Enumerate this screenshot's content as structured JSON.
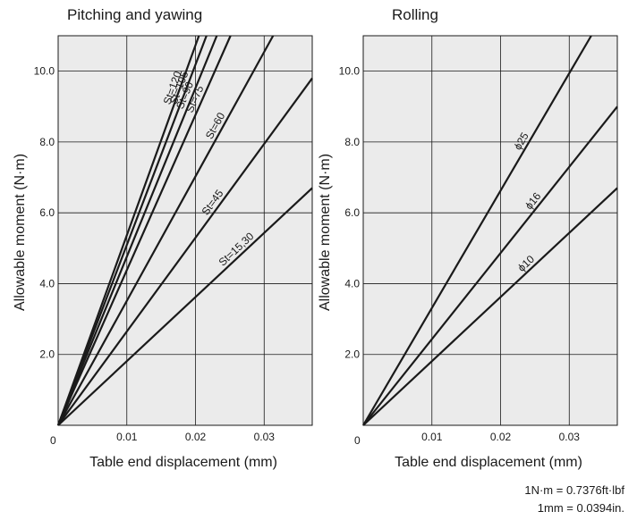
{
  "chart_data": [
    {
      "type": "line",
      "title": "Pitching and yawing",
      "xlabel": "Table end displacement (mm)",
      "ylabel": "Allowable moment (N·m)",
      "xlim": [
        0,
        0.037
      ],
      "ylim": [
        0,
        11
      ],
      "x_ticks": [
        "0.01",
        "0.02",
        "0.03"
      ],
      "y_ticks": [
        "2.0",
        "4.0",
        "6.0",
        "8.0",
        "10.0"
      ],
      "origin_label": "0",
      "grid": true,
      "series": [
        {
          "name": "St=120",
          "x": [
            0,
            0.0205
          ],
          "y": [
            0,
            11
          ]
        },
        {
          "name": "St=105",
          "x": [
            0,
            0.0216
          ],
          "y": [
            0,
            11
          ]
        },
        {
          "name": "St=90",
          "x": [
            0,
            0.0231
          ],
          "y": [
            0,
            11
          ]
        },
        {
          "name": "St=75",
          "x": [
            0,
            0.0251
          ],
          "y": [
            0,
            11
          ]
        },
        {
          "name": "St=60",
          "x": [
            0,
            0.0313
          ],
          "y": [
            0,
            11
          ]
        },
        {
          "name": "St=45",
          "x": [
            0,
            0.037
          ],
          "y": [
            0,
            9.8
          ]
        },
        {
          "name": "St=15,30",
          "x": [
            0,
            0.037
          ],
          "y": [
            0,
            6.7
          ]
        }
      ]
    },
    {
      "type": "line",
      "title": "Rolling",
      "xlabel": "Table end displacement (mm)",
      "ylabel": "Allowable moment (N·m)",
      "xlim": [
        0,
        0.037
      ],
      "ylim": [
        0,
        11
      ],
      "x_ticks": [
        "0.01",
        "0.02",
        "0.03"
      ],
      "y_ticks": [
        "2.0",
        "4.0",
        "6.0",
        "8.0",
        "10.0"
      ],
      "origin_label": "0",
      "grid": true,
      "series": [
        {
          "name": "ϕ25",
          "x": [
            0,
            0.0332
          ],
          "y": [
            0,
            11
          ]
        },
        {
          "name": "ϕ16",
          "x": [
            0,
            0.037
          ],
          "y": [
            0,
            9.0
          ]
        },
        {
          "name": "ϕ10",
          "x": [
            0,
            0.037
          ],
          "y": [
            0,
            6.7
          ]
        }
      ]
    }
  ],
  "notes": {
    "line1": "1N·m = 0.7376ft·lbf",
    "line2": "1mm = 0.0394in."
  },
  "colors": {
    "line": "#1a1a1a",
    "grid": "#1a1a1a",
    "plot_bg": "#ebebeb"
  }
}
